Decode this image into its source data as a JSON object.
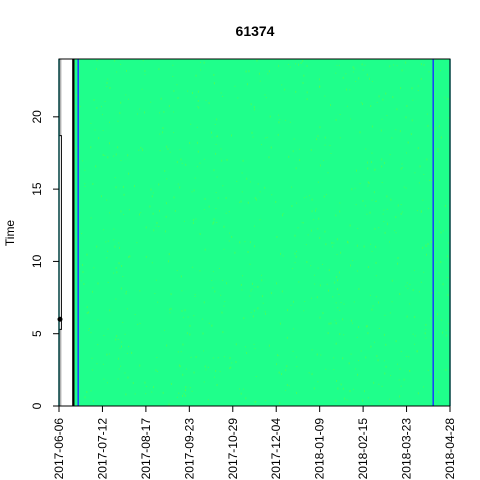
{
  "chart_data": {
    "type": "heatmap",
    "title": "61374",
    "xlabel": "",
    "ylabel": "Time",
    "x_range": [
      "2017-06-06",
      "2018-04-28"
    ],
    "ylim": [
      0,
      24
    ],
    "y_ticks": [
      0,
      5,
      10,
      15,
      20
    ],
    "x_tick_labels": [
      "2017-06-06",
      "2017-07-12",
      "2017-08-17",
      "2017-09-23",
      "2017-10-29",
      "2017-12-04",
      "2018-01-09",
      "2018-02-15",
      "2018-03-23",
      "2018-04-28"
    ],
    "grid": false,
    "legend": "none",
    "fill_color": "#1fff8b",
    "speckle_color": "#66ff33",
    "gray_color": "#b0b0b0",
    "blue_line_color": "#1a3cff",
    "green_line_color": "#00bfbf",
    "regions": [
      {
        "kind": "gray",
        "x_start": "2017-06-06",
        "x_end": "2017-06-08",
        "y_start": 0,
        "y_end": 5.3
      },
      {
        "kind": "gray",
        "x_start": "2017-06-06",
        "x_end": "2017-06-08",
        "y_start": 18.7,
        "y_end": 24
      },
      {
        "kind": "white",
        "x_start": "2017-06-06",
        "x_end": "2017-06-08",
        "y_start": 5.3,
        "y_end": 18.7
      },
      {
        "kind": "black",
        "x_start": "2017-06-17",
        "x_end": "2017-06-19",
        "y_start": 0,
        "y_end": 24
      },
      {
        "kind": "green",
        "x_start": "2017-06-19",
        "x_end": "2018-04-28",
        "y_start": 0,
        "y_end": 24
      }
    ],
    "vlines": [
      {
        "date": "2017-06-22",
        "color": "blue"
      },
      {
        "date": "2018-04-14",
        "color": "blue"
      },
      {
        "date": "2017-06-06",
        "color": "green"
      },
      {
        "date": "2018-04-28",
        "color": "green"
      }
    ],
    "points": [
      {
        "date": "2017-06-06",
        "hour": 6.0
      }
    ]
  }
}
